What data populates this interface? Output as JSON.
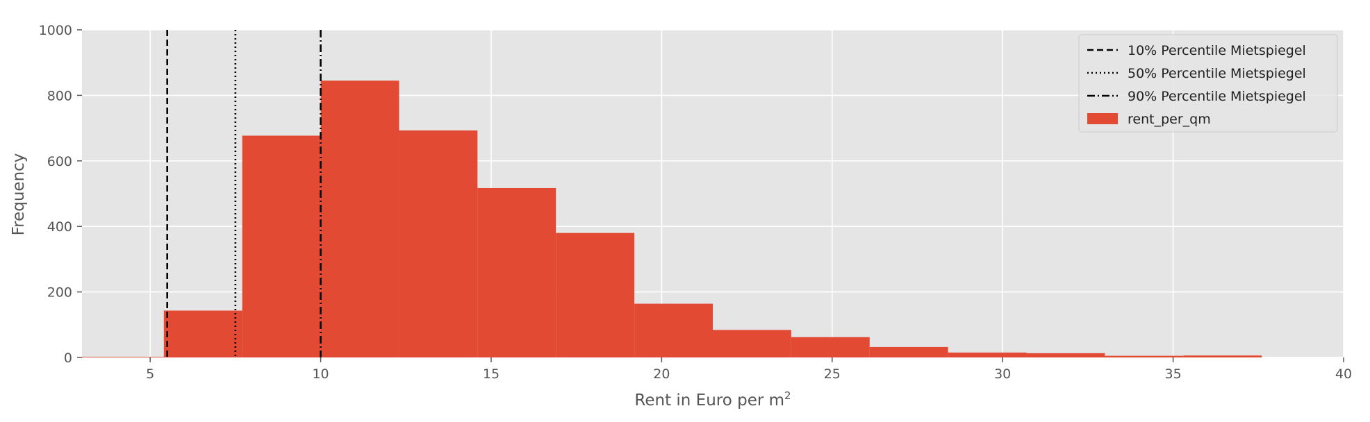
{
  "chart_data": {
    "type": "bar",
    "xlabel_main": "Rent in Euro per m",
    "xlabel_sup": "2",
    "ylabel": "Frequency",
    "xlim": [
      3,
      40
    ],
    "ylim": [
      0,
      1000
    ],
    "xticks": [
      5,
      10,
      15,
      20,
      25,
      30,
      35,
      40
    ],
    "yticks": [
      0,
      200,
      400,
      600,
      800,
      1000
    ],
    "grid": true,
    "legend_position": "top-right",
    "histogram": {
      "name": "rent_per_qm",
      "color": "#E24A33",
      "bins": [
        {
          "x0": 0.8,
          "x1": 5.4,
          "count": 2
        },
        {
          "x0": 5.4,
          "x1": 7.7,
          "count": 143
        },
        {
          "x0": 7.7,
          "x1": 10.0,
          "count": 677
        },
        {
          "x0": 10.0,
          "x1": 12.3,
          "count": 845
        },
        {
          "x0": 12.3,
          "x1": 14.6,
          "count": 693
        },
        {
          "x0": 14.6,
          "x1": 16.9,
          "count": 517
        },
        {
          "x0": 16.9,
          "x1": 19.2,
          "count": 380
        },
        {
          "x0": 19.2,
          "x1": 21.5,
          "count": 164
        },
        {
          "x0": 21.5,
          "x1": 23.8,
          "count": 84
        },
        {
          "x0": 23.8,
          "x1": 26.1,
          "count": 62
        },
        {
          "x0": 26.1,
          "x1": 28.4,
          "count": 32
        },
        {
          "x0": 28.4,
          "x1": 30.7,
          "count": 15
        },
        {
          "x0": 30.7,
          "x1": 33.0,
          "count": 13
        },
        {
          "x0": 33.0,
          "x1": 35.3,
          "count": 5
        },
        {
          "x0": 35.3,
          "x1": 37.6,
          "count": 6
        }
      ]
    },
    "reference_lines": [
      {
        "name": "10% Percentile Mietspiegel",
        "x": 5.5,
        "style": "dashed"
      },
      {
        "name": "50% Percentile Mietspiegel",
        "x": 7.5,
        "style": "dotted"
      },
      {
        "name": "90% Percentile Mietspiegel",
        "x": 10.0,
        "style": "dashdot"
      }
    ]
  }
}
